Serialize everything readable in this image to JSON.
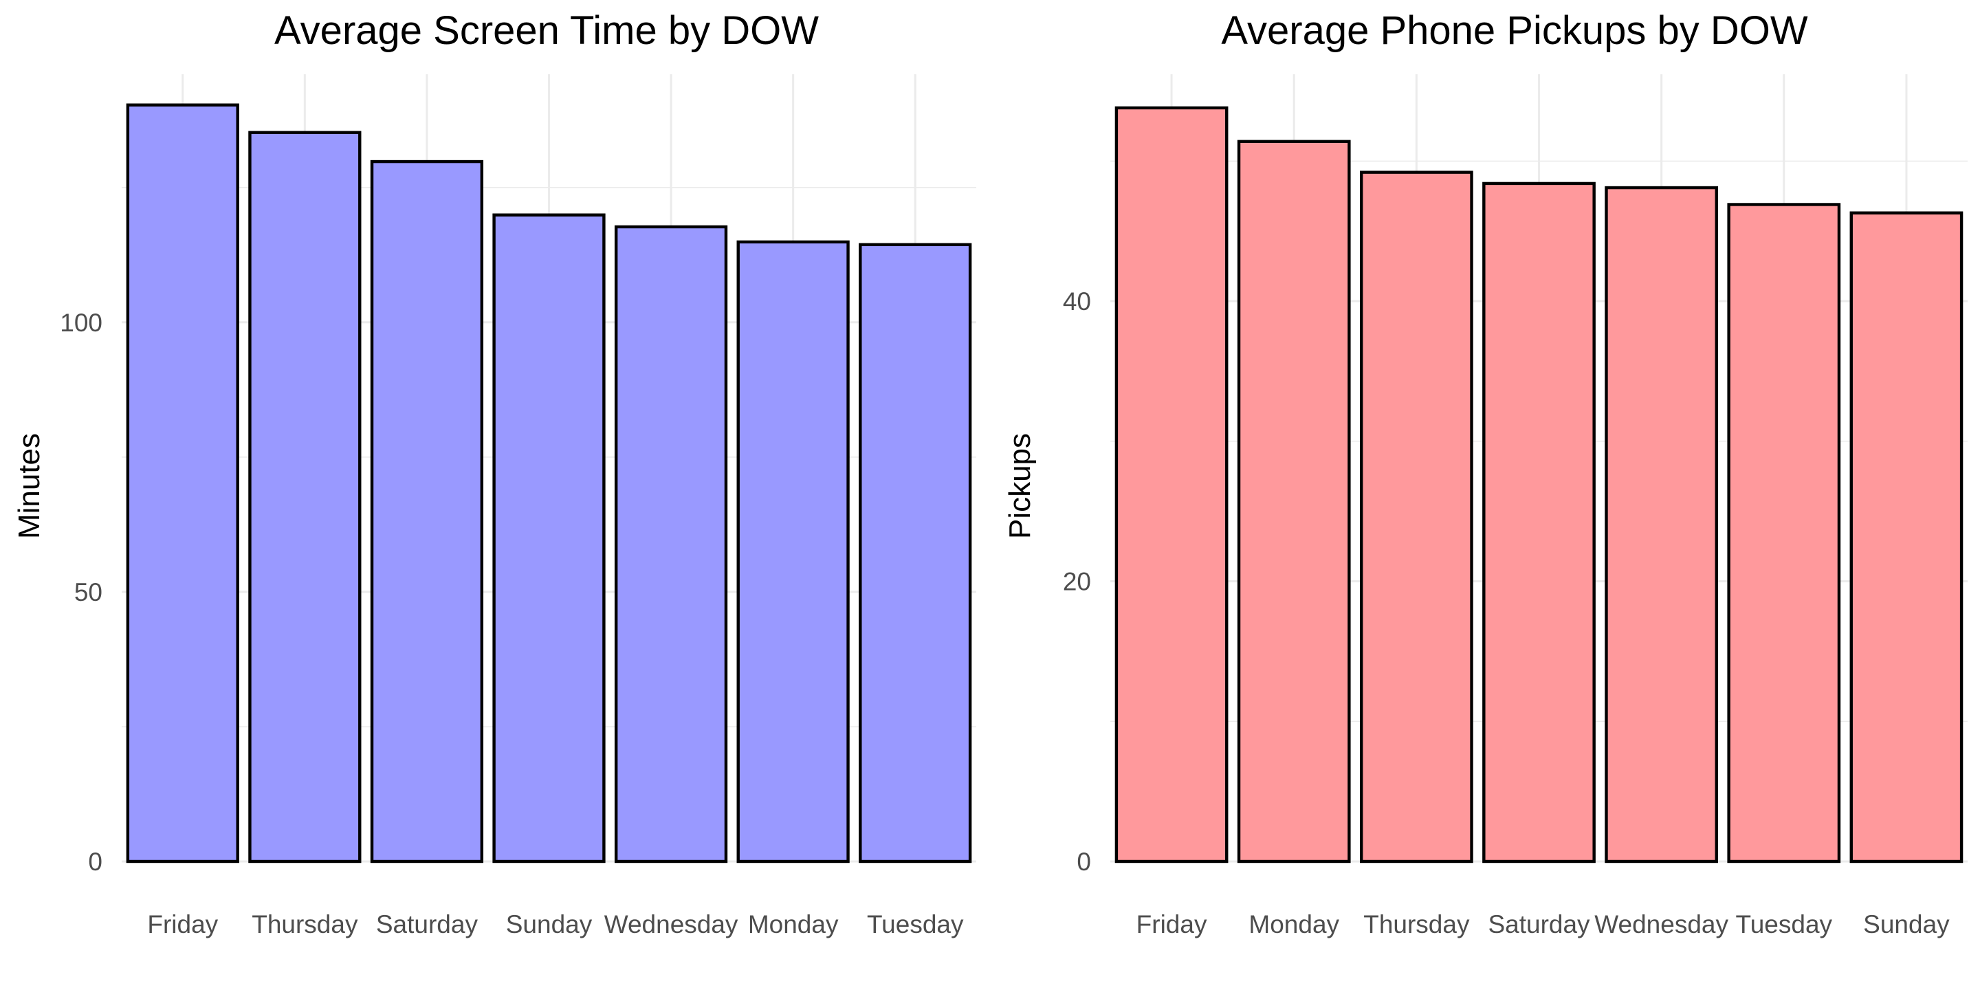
{
  "chart_data": [
    {
      "type": "bar",
      "title": "Average Screen Time by DOW",
      "xlabel": "",
      "ylabel": "Minutes",
      "categories": [
        "Friday",
        "Thursday",
        "Saturday",
        "Sunday",
        "Wednesday",
        "Monday",
        "Tuesday"
      ],
      "values": [
        140.3,
        135.2,
        129.8,
        119.9,
        117.7,
        114.9,
        114.4
      ],
      "ylim": [
        0,
        146
      ],
      "yticks": [
        "0",
        "50",
        "100"
      ],
      "grid": true,
      "legend": "none",
      "colors": {
        "fill": "#9999ff",
        "outline": "#000000"
      }
    },
    {
      "type": "bar",
      "title": "Average Phone Pickups by DOW",
      "xlabel": "",
      "ylabel": "Pickups",
      "categories": [
        "Friday",
        "Monday",
        "Thursday",
        "Saturday",
        "Wednesday",
        "Tuesday",
        "Sunday"
      ],
      "values": [
        53.8,
        51.4,
        49.2,
        48.4,
        48.1,
        46.9,
        46.3
      ],
      "ylim": [
        0,
        56.2
      ],
      "yticks": [
        "0",
        "20",
        "40"
      ],
      "grid": true,
      "legend": "none",
      "colors": {
        "fill": "#ff999c",
        "outline": "#000000"
      }
    }
  ]
}
